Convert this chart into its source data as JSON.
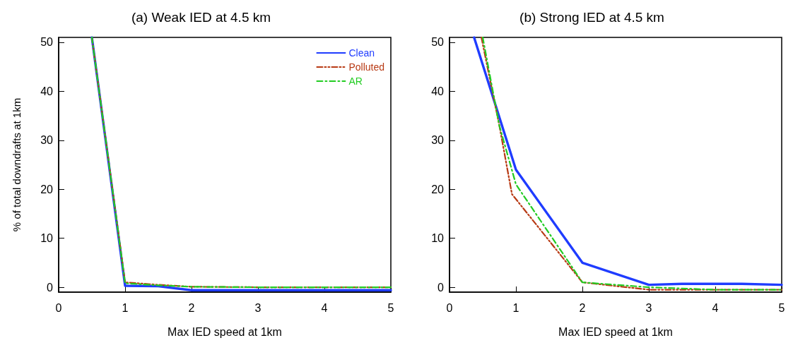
{
  "chart_data": [
    {
      "type": "line",
      "title": "(a) Weak IED at 4.5 km",
      "xlabel": "Max IED speed at 1km",
      "ylabel": "% of total downdrafts at 1km",
      "xlim": [
        0,
        5
      ],
      "xticks": [
        0,
        1,
        2,
        3,
        4,
        5
      ],
      "ylim": [
        -1,
        51
      ],
      "yticks": [
        0,
        10,
        20,
        30,
        40,
        50
      ],
      "grid": false,
      "marker": "none",
      "legend": "top right",
      "series": [
        {
          "name": "Clean",
          "color": "#1f3cff",
          "line_style": "solid",
          "x": [
            0.5,
            1,
            1.5,
            2,
            3,
            4,
            5
          ],
          "values": [
            51,
            0.3,
            0.2,
            -0.6,
            -0.6,
            -0.6,
            -0.6
          ]
        },
        {
          "name": "Polluted",
          "color": "#b83a14",
          "line_style": "dashdotdot",
          "x": [
            0.5,
            1,
            1.5,
            2,
            3,
            4,
            5
          ],
          "values": [
            51,
            1,
            0.5,
            0.1,
            0,
            0,
            0
          ]
        },
        {
          "name": "AR",
          "color": "#22cc22",
          "line_style": "dashdot",
          "x": [
            0.5,
            1,
            1.5,
            2,
            3,
            4,
            5
          ],
          "values": [
            51,
            0.8,
            0.4,
            0.1,
            0,
            0,
            0
          ]
        }
      ]
    },
    {
      "type": "line",
      "title": "(b) Strong IED at 4.5 km",
      "xlabel": "Max IED speed at 1km",
      "xlim": [
        0,
        5
      ],
      "xticks": [
        0,
        1,
        2,
        3,
        4,
        5
      ],
      "ylim": [
        -1,
        51
      ],
      "yticks": [
        0,
        10,
        20,
        30,
        40,
        50
      ],
      "grid": false,
      "marker": "none",
      "series": [
        {
          "color": "#1f3cff",
          "line_style": "solid",
          "x": [
            0.37,
            1,
            2,
            3,
            3.5,
            4.4,
            5
          ],
          "values": [
            51,
            24,
            5,
            0.5,
            0.7,
            0.7,
            0.5
          ]
        },
        {
          "color": "#b83a14",
          "line_style": "dashdotdot",
          "x": [
            0.48,
            0.75,
            0.94,
            2,
            3,
            4,
            5
          ],
          "values": [
            51,
            33,
            19,
            1,
            -0.5,
            -0.5,
            -0.5
          ]
        },
        {
          "color": "#22cc22",
          "line_style": "dashdot",
          "x": [
            0.5,
            0.75,
            1,
            2,
            3,
            4,
            5
          ],
          "values": [
            51,
            33,
            21,
            1,
            0,
            -0.5,
            -0.5
          ]
        }
      ]
    }
  ]
}
